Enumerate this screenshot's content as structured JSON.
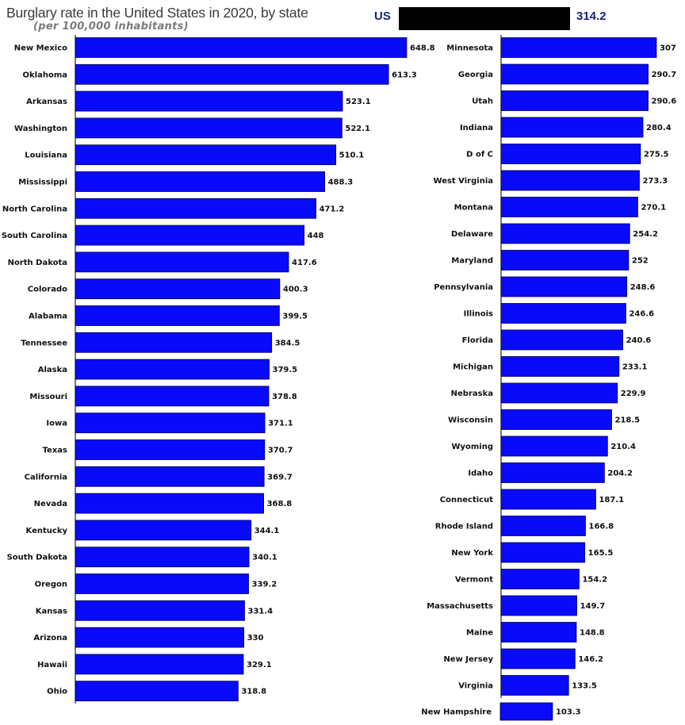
{
  "chart_data": {
    "type": "bar",
    "orientation": "horizontal",
    "title": "Burglary rate in the United States in 2020, by state",
    "subtitle": "(per 100,000 inhabitants)",
    "reference": {
      "label": "US",
      "value": 314.2
    },
    "colors": {
      "bar": "#0a0afa",
      "reference_bar": "#000000",
      "reference_text": "#1a237e"
    },
    "categories": [
      "New Mexico",
      "Oklahoma",
      "Arkansas",
      "Washington",
      "Louisiana",
      "Mississippi",
      "North Carolina",
      "South Carolina",
      "North Dakota",
      "Colorado",
      "Alabama",
      "Tennessee",
      "Alaska",
      "Missouri",
      "Iowa",
      "Texas",
      "California",
      "Nevada",
      "Kentucky",
      "South Dakota",
      "Oregon",
      "Kansas",
      "Arizona",
      "Hawaii",
      "Ohio",
      "Minnesota",
      "Georgia",
      "Utah",
      "Indiana",
      "D of C",
      "West Virginia",
      "Montana",
      "Delaware",
      "Maryland",
      "Pennsylvania",
      "Illinois",
      "Florida",
      "Michigan",
      "Nebraska",
      "Wisconsin",
      "Wyoming",
      "Idaho",
      "Connecticut",
      "Rhode Island",
      "New York",
      "Vermont",
      "Massachusetts",
      "Maine",
      "New Jersey",
      "Virginia",
      "New Hampshire"
    ],
    "values": [
      648.8,
      613.3,
      523.1,
      522.1,
      510.1,
      488.3,
      471.2,
      448,
      417.6,
      400.3,
      399.5,
      384.5,
      379.5,
      378.8,
      371.1,
      370.7,
      369.7,
      368.8,
      344.1,
      340.1,
      339.2,
      331.4,
      330,
      329.1,
      318.8,
      307,
      290.7,
      290.6,
      280.4,
      275.5,
      273.3,
      270.1,
      254.2,
      252,
      248.6,
      246.6,
      240.6,
      233.1,
      229.9,
      218.5,
      210.4,
      204.2,
      187.1,
      166.8,
      165.5,
      154.2,
      149.7,
      148.8,
      146.2,
      133.5,
      103.3
    ],
    "value_labels": [
      "648.8",
      "613.3",
      "523.1",
      "522.1",
      "510.1",
      "488.3",
      "471.2",
      "448",
      "417.6",
      "400.3",
      "399.5",
      "384.5",
      "379.5",
      "378.8",
      "371.1",
      "370.7",
      "369.7",
      "368.8",
      "344.1",
      "340.1",
      "339.2",
      "331.4",
      "330",
      "329.1",
      "318.8",
      "307",
      "290.7",
      "290.6",
      "280.4",
      "275.5",
      "273.3",
      "270.1",
      "254.2",
      "252",
      "248.6",
      "246.6",
      "240.6",
      "233.1",
      "229.9",
      "218.5",
      "210.4",
      "204.2",
      "187.1",
      "166.8",
      "165.5",
      "154.2",
      "149.7",
      "148.8",
      "146.2",
      "133.5",
      "103.3"
    ]
  }
}
